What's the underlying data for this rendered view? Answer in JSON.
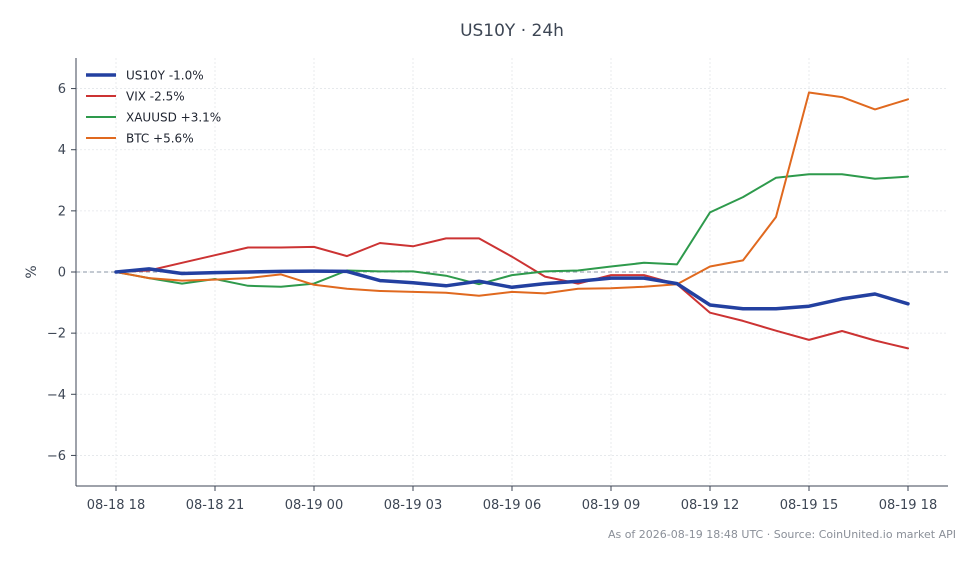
{
  "chart_data": {
    "type": "line",
    "title": "US10Y · 24h",
    "xlabel": "",
    "ylabel": "%",
    "ylim": [
      -7,
      7
    ],
    "yticks": [
      -6,
      -4,
      -2,
      0,
      2,
      4,
      6
    ],
    "ytick_labels": [
      "−6",
      "−4",
      "−2",
      "0",
      "2",
      "4",
      "6"
    ],
    "x_hours": [
      0,
      1,
      2,
      3,
      4,
      5,
      6,
      7,
      8,
      9,
      10,
      11,
      12,
      13,
      14,
      15,
      16,
      17,
      18,
      19,
      20,
      21,
      22,
      23,
      24
    ],
    "xticks": [
      0,
      3,
      6,
      9,
      12,
      15,
      18,
      21,
      24
    ],
    "xtick_labels": [
      "08-18 18",
      "08-18 21",
      "08-19 00",
      "08-19 03",
      "08-19 06",
      "08-19 09",
      "08-19 12",
      "08-19 15",
      "08-19 18"
    ],
    "grid": true,
    "zero_line": true,
    "legend_position": "top-left",
    "series": [
      {
        "name": "US10Y -1.0%",
        "color": "#2340a0",
        "width": 3.5,
        "values": [
          0.0,
          0.1,
          -0.05,
          -0.02,
          0.0,
          0.02,
          0.03,
          0.02,
          -0.28,
          -0.35,
          -0.45,
          -0.3,
          -0.5,
          -0.38,
          -0.3,
          -0.2,
          -0.2,
          -0.38,
          -1.08,
          -1.2,
          -1.2,
          -1.12,
          -0.88,
          -0.72,
          -1.04
        ]
      },
      {
        "name": "VIX -2.5%",
        "color": "#cc3333",
        "width": 2,
        "values": [
          0.0,
          0.05,
          0.3,
          0.55,
          0.8,
          0.8,
          0.82,
          0.52,
          0.95,
          0.84,
          1.1,
          1.1,
          0.5,
          -0.15,
          -0.38,
          -0.1,
          -0.1,
          -0.4,
          -1.33,
          -1.6,
          -1.92,
          -2.22,
          -1.93,
          -2.24,
          -2.5
        ]
      },
      {
        "name": "XAUUSD +3.1%",
        "color": "#2e9a4c",
        "width": 2,
        "values": [
          0.0,
          -0.2,
          -0.38,
          -0.23,
          -0.45,
          -0.48,
          -0.38,
          0.05,
          0.02,
          0.02,
          -0.12,
          -0.4,
          -0.1,
          0.02,
          0.05,
          0.18,
          0.3,
          0.25,
          1.95,
          2.45,
          3.08,
          3.2,
          3.2,
          3.05,
          3.12
        ]
      },
      {
        "name": "BTC +5.6%",
        "color": "#e0691f",
        "width": 2,
        "values": [
          0.0,
          -0.2,
          -0.28,
          -0.25,
          -0.2,
          -0.08,
          -0.42,
          -0.55,
          -0.62,
          -0.65,
          -0.68,
          -0.78,
          -0.65,
          -0.7,
          -0.55,
          -0.53,
          -0.48,
          -0.4,
          0.18,
          0.38,
          1.8,
          5.87,
          5.72,
          5.32,
          5.65
        ]
      }
    ]
  },
  "footer": {
    "text": "As of 2026-08-19 18:48 UTC · Source: CoinUnited.io market API"
  }
}
